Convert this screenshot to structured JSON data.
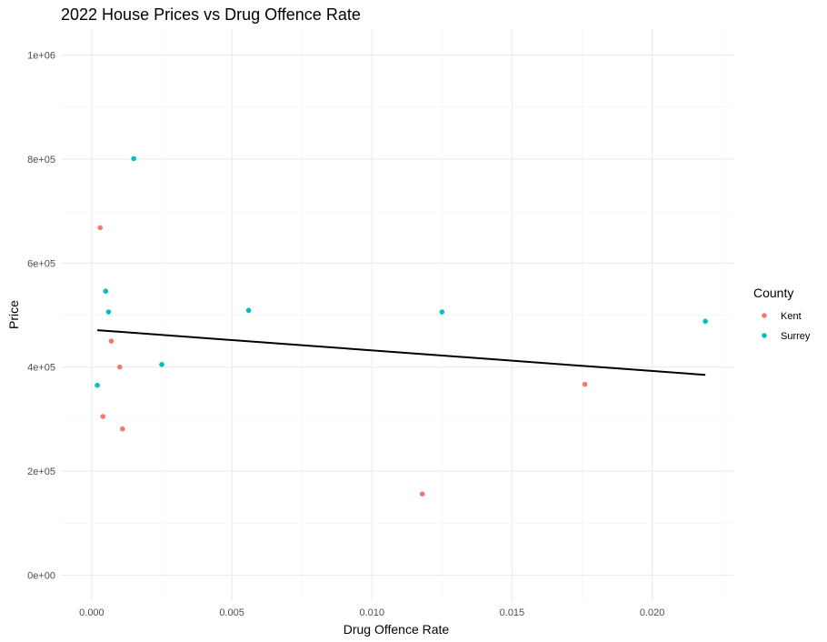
{
  "chart_data": {
    "type": "scatter",
    "title": "2022 House Prices vs Drug Offence Rate",
    "xlabel": "Drug Offence Rate",
    "ylabel": "Price",
    "xlim": [
      -0.0011,
      0.0229
    ],
    "ylim": [
      -50000,
      1050000
    ],
    "x_ticks": [
      0,
      0.005,
      0.01,
      0.015,
      0.02
    ],
    "x_tick_labels": [
      "0.000",
      "0.005",
      "0.010",
      "0.015",
      "0.020"
    ],
    "y_ticks": [
      0,
      200000,
      400000,
      600000,
      800000,
      1000000
    ],
    "y_tick_labels": [
      "0e+00",
      "2e+05",
      "4e+05",
      "6e+05",
      "8e+05",
      "1e+06"
    ],
    "grid": true,
    "legend": {
      "title": "County",
      "position": "right"
    },
    "series": [
      {
        "name": "Kent",
        "color": "#F8766D",
        "points": [
          {
            "x": 0.0003,
            "y": 668000
          },
          {
            "x": 0.0007,
            "y": 450000
          },
          {
            "x": 0.001,
            "y": 400000
          },
          {
            "x": 0.0004,
            "y": 305000
          },
          {
            "x": 0.0011,
            "y": 281000
          },
          {
            "x": 0.0118,
            "y": 156000
          },
          {
            "x": 0.0176,
            "y": 367000
          }
        ]
      },
      {
        "name": "Surrey",
        "color": "#00BFC4",
        "points": [
          {
            "x": 0.0015,
            "y": 801000
          },
          {
            "x": 0.0005,
            "y": 546000
          },
          {
            "x": 0.0006,
            "y": 506000
          },
          {
            "x": 0.0025,
            "y": 405000
          },
          {
            "x": 0.0002,
            "y": 365000
          },
          {
            "x": 0.0056,
            "y": 509000
          },
          {
            "x": 0.0125,
            "y": 506000
          },
          {
            "x": 0.0219,
            "y": 488000
          }
        ]
      }
    ],
    "trend_line": {
      "color": "#000000",
      "x": [
        0.0002,
        0.0219
      ],
      "y": [
        471000,
        385000
      ]
    }
  }
}
